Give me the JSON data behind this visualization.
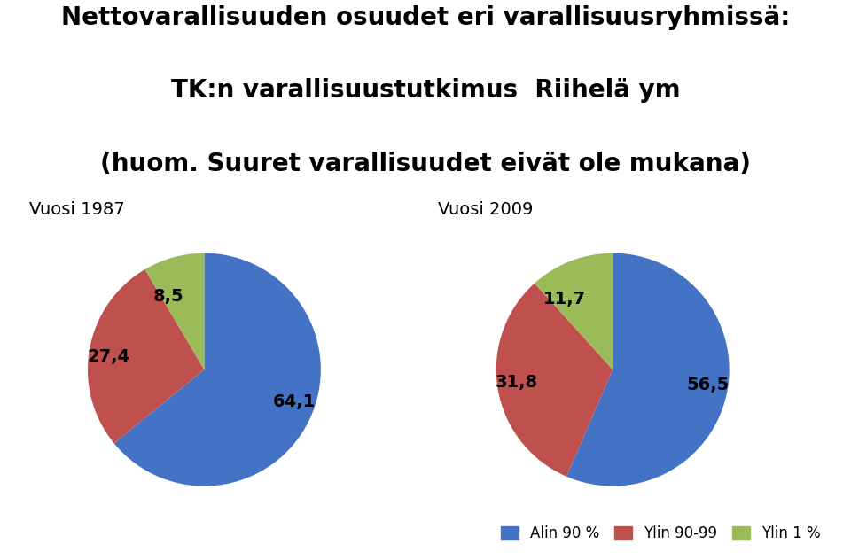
{
  "title_line1": "Nettovarallisuuden osuudet eri varallisuusryhmissä:",
  "title_line2": "TK:n varallisuustutkimus  Riihelä ym",
  "title_line3": "(huom. Suuret varallisuudet eivät ole mukana)",
  "pie1_label": "Vuosi 1987",
  "pie2_label": "Vuosi 2009",
  "pie1_values": [
    64.1,
    27.4,
    8.5
  ],
  "pie2_values": [
    56.5,
    31.8,
    11.7
  ],
  "pie1_labels": [
    "64,1",
    "27,4",
    "8,5"
  ],
  "pie2_labels": [
    "56,5",
    "31,8",
    "11,7"
  ],
  "colors": [
    "#4472C4",
    "#C0504D",
    "#9BBB59"
  ],
  "legend_labels": [
    "Alin 90 %",
    "Ylin 90-99",
    "Ylin 1 %"
  ],
  "title_fontsize": 20,
  "subtitle_fontsize": 20,
  "label_fontsize": 14,
  "pie_title_fontsize": 14,
  "legend_fontsize": 12,
  "background_color": "#ffffff"
}
